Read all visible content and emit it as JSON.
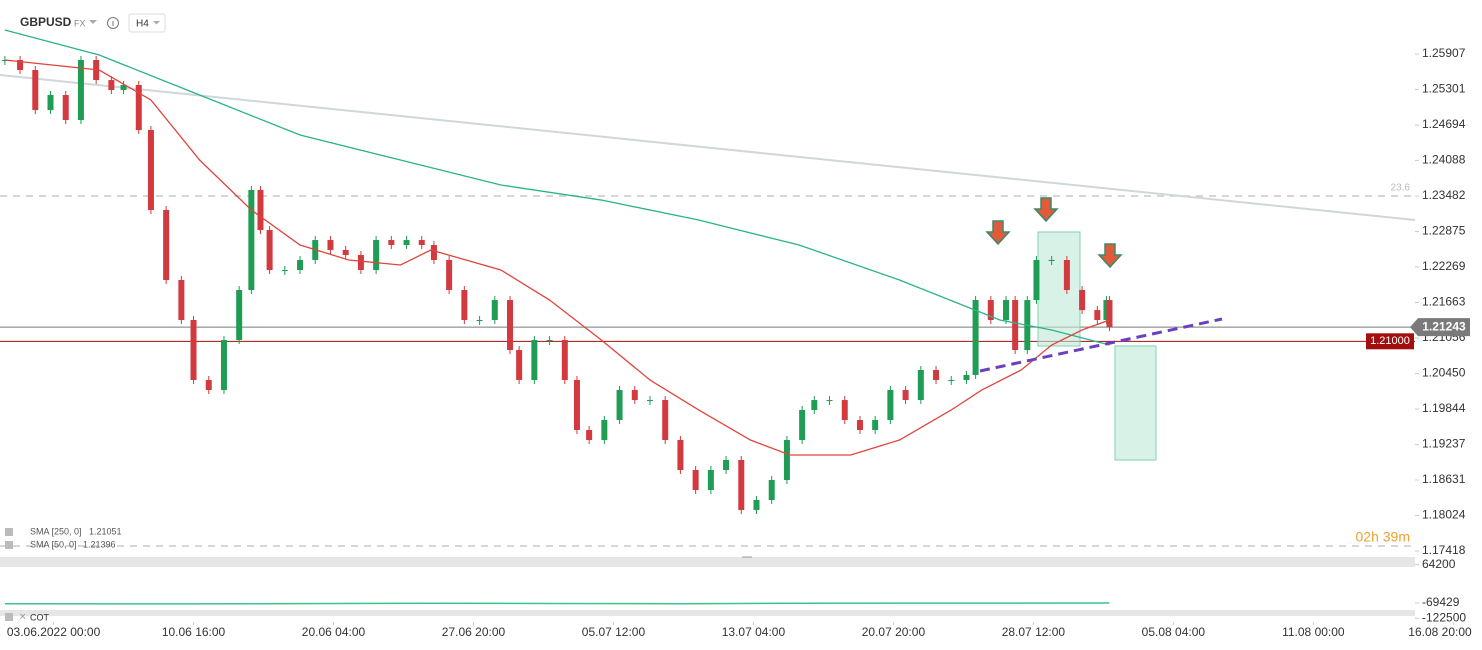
{
  "header": {
    "symbol": "GBPUSD",
    "market": "FX",
    "timeframe": "H4"
  },
  "chart_data": {
    "type": "candlestick",
    "xlim": [
      -1.6,
      463.4
    ],
    "xticks": [
      {
        "value": 16,
        "label": "03.06.2022  00:00"
      },
      {
        "value": 62,
        "label": "10.06  16:00"
      },
      {
        "value": 108,
        "label": "20.06  04:00"
      },
      {
        "value": 154,
        "label": "27.06  20:00"
      },
      {
        "value": 200,
        "label": "05.07  12:00"
      },
      {
        "value": 246,
        "label": "13.07  04:00"
      },
      {
        "value": 292,
        "label": "20.07  20:00"
      },
      {
        "value": 338,
        "label": "28.07  12:00"
      },
      {
        "value": 384,
        "label": "05.08  04:00"
      },
      {
        "value": 430,
        "label": "11.08  00:00"
      },
      {
        "value": 476,
        "label": "16.08  20:00"
      }
    ],
    "ylim": [
      1.1735,
      1.2683
    ],
    "yticks": [
      1.25907,
      1.25301,
      1.24694,
      1.24088,
      1.23482,
      1.22875,
      1.22269,
      1.21663,
      1.21056,
      {
        "value": 1.2045,
        "label": "1.20450"
      },
      1.19844,
      1.19237,
      1.18631,
      1.18024,
      1.17418
    ],
    "up_color": "#1f9d55",
    "down_color": "#d23a3f",
    "series": [
      {
        "name": "GBPUSD",
        "color": "#1f9d55",
        "x": [
          0,
          5,
          10,
          15,
          20,
          25,
          30,
          35,
          39,
          44,
          48,
          53,
          58,
          62,
          67,
          72,
          77,
          81,
          84,
          87,
          92,
          97,
          102,
          107,
          112,
          117,
          122,
          127,
          132,
          137,
          141,
          146,
          151,
          156,
          161,
          166,
          169,
          174,
          179,
          184,
          188,
          192,
          197,
          202,
          207,
          212,
          217,
          222,
          227,
          232,
          237,
          242,
          247,
          252,
          257,
          262,
          266,
          271,
          276,
          281,
          286,
          291,
          296,
          301,
          306,
          311,
          316,
          319,
          324,
          329,
          332,
          336,
          339,
          344,
          349,
          354,
          359,
          362,
          363
        ],
        "values": [
          1.25805,
          1.25634,
          1.24951,
          1.25207,
          1.2478,
          1.25805,
          1.25463,
          1.25292,
          1.25378,
          1.24609,
          1.23243,
          1.22047,
          1.21364,
          1.20339,
          1.20168,
          1.21022,
          1.21876,
          1.23585,
          1.22901,
          1.22218,
          1.22218,
          1.22389,
          1.2273,
          1.2256,
          1.22474,
          1.22218,
          1.2273,
          1.22645,
          1.2273,
          1.22645,
          1.22389,
          1.21876,
          1.21364,
          1.21364,
          1.21705,
          1.20851,
          1.20339,
          1.21022,
          1.21022,
          1.20339,
          1.19485,
          1.19314,
          1.19656,
          1.20168,
          1.19997,
          1.19997,
          1.19314,
          1.18802,
          1.1846,
          1.18802,
          1.18973,
          1.18119,
          1.18289,
          1.18631,
          1.19314,
          1.19827,
          1.19997,
          1.19997,
          1.19656,
          1.19485,
          1.19656,
          1.20168,
          1.19997,
          1.2051,
          1.20339,
          1.20339,
          1.20425,
          1.21705,
          1.21364,
          1.21705,
          1.20851,
          1.21705,
          1.22389,
          1.22389,
          1.21876,
          1.21534,
          1.21364,
          1.21705,
          1.21243
        ]
      },
      {
        "name": "SMA [250,  0]",
        "color": "#2bb38a",
        "legend_value": 1.21051,
        "x": [
          0,
          31,
          64,
          97,
          130,
          163,
          196,
          228,
          261,
          294,
          327,
          344,
          363
        ],
        "values": [
          1.26317,
          1.2589,
          1.25207,
          1.24524,
          1.24097,
          1.2367,
          1.23413,
          1.23072,
          1.22645,
          1.22047,
          1.21364,
          1.21193,
          1.20937
        ]
      },
      {
        "name": "SMA [50,  0]",
        "color": "#e0443c",
        "legend_value": 1.21396,
        "x": [
          0,
          31,
          48,
          64,
          81,
          97,
          113,
          130,
          140,
          163,
          179,
          196,
          212,
          228,
          245,
          258,
          278,
          294,
          311,
          321,
          334,
          344,
          354,
          363
        ],
        "values": [
          1.25805,
          1.25634,
          1.25122,
          1.24097,
          1.23243,
          1.22645,
          1.22389,
          1.22304,
          1.2256,
          1.22218,
          1.21705,
          1.21022,
          1.20339,
          1.19827,
          1.19314,
          1.19058,
          1.19058,
          1.19314,
          1.19827,
          1.20168,
          1.2051,
          1.20937,
          1.21193,
          1.21364
        ]
      }
    ],
    "price_lines": [
      {
        "value": 1.21243,
        "color": "#7a7a7a"
      },
      {
        "value": 1.21,
        "label": "1.21000",
        "color": "#a30f0f"
      }
    ],
    "fib_levels": [
      {
        "level": 23.6,
        "price": 1.23482
      },
      {
        "price": 1.17504
      }
    ],
    "timer": "02h 39m"
  },
  "cot_pane": {
    "name": "COT",
    "ylim": [
      -125000,
      70000
    ],
    "yticks": [
      64200,
      -69429,
      -122500
    ],
    "color": "#3cc48f",
    "x": [
      0,
      58,
      140,
      179,
      222,
      262,
      363
    ],
    "values": [
      -72000,
      -72500,
      -70000,
      -71000,
      -72000,
      -70000,
      -69429
    ]
  }
}
